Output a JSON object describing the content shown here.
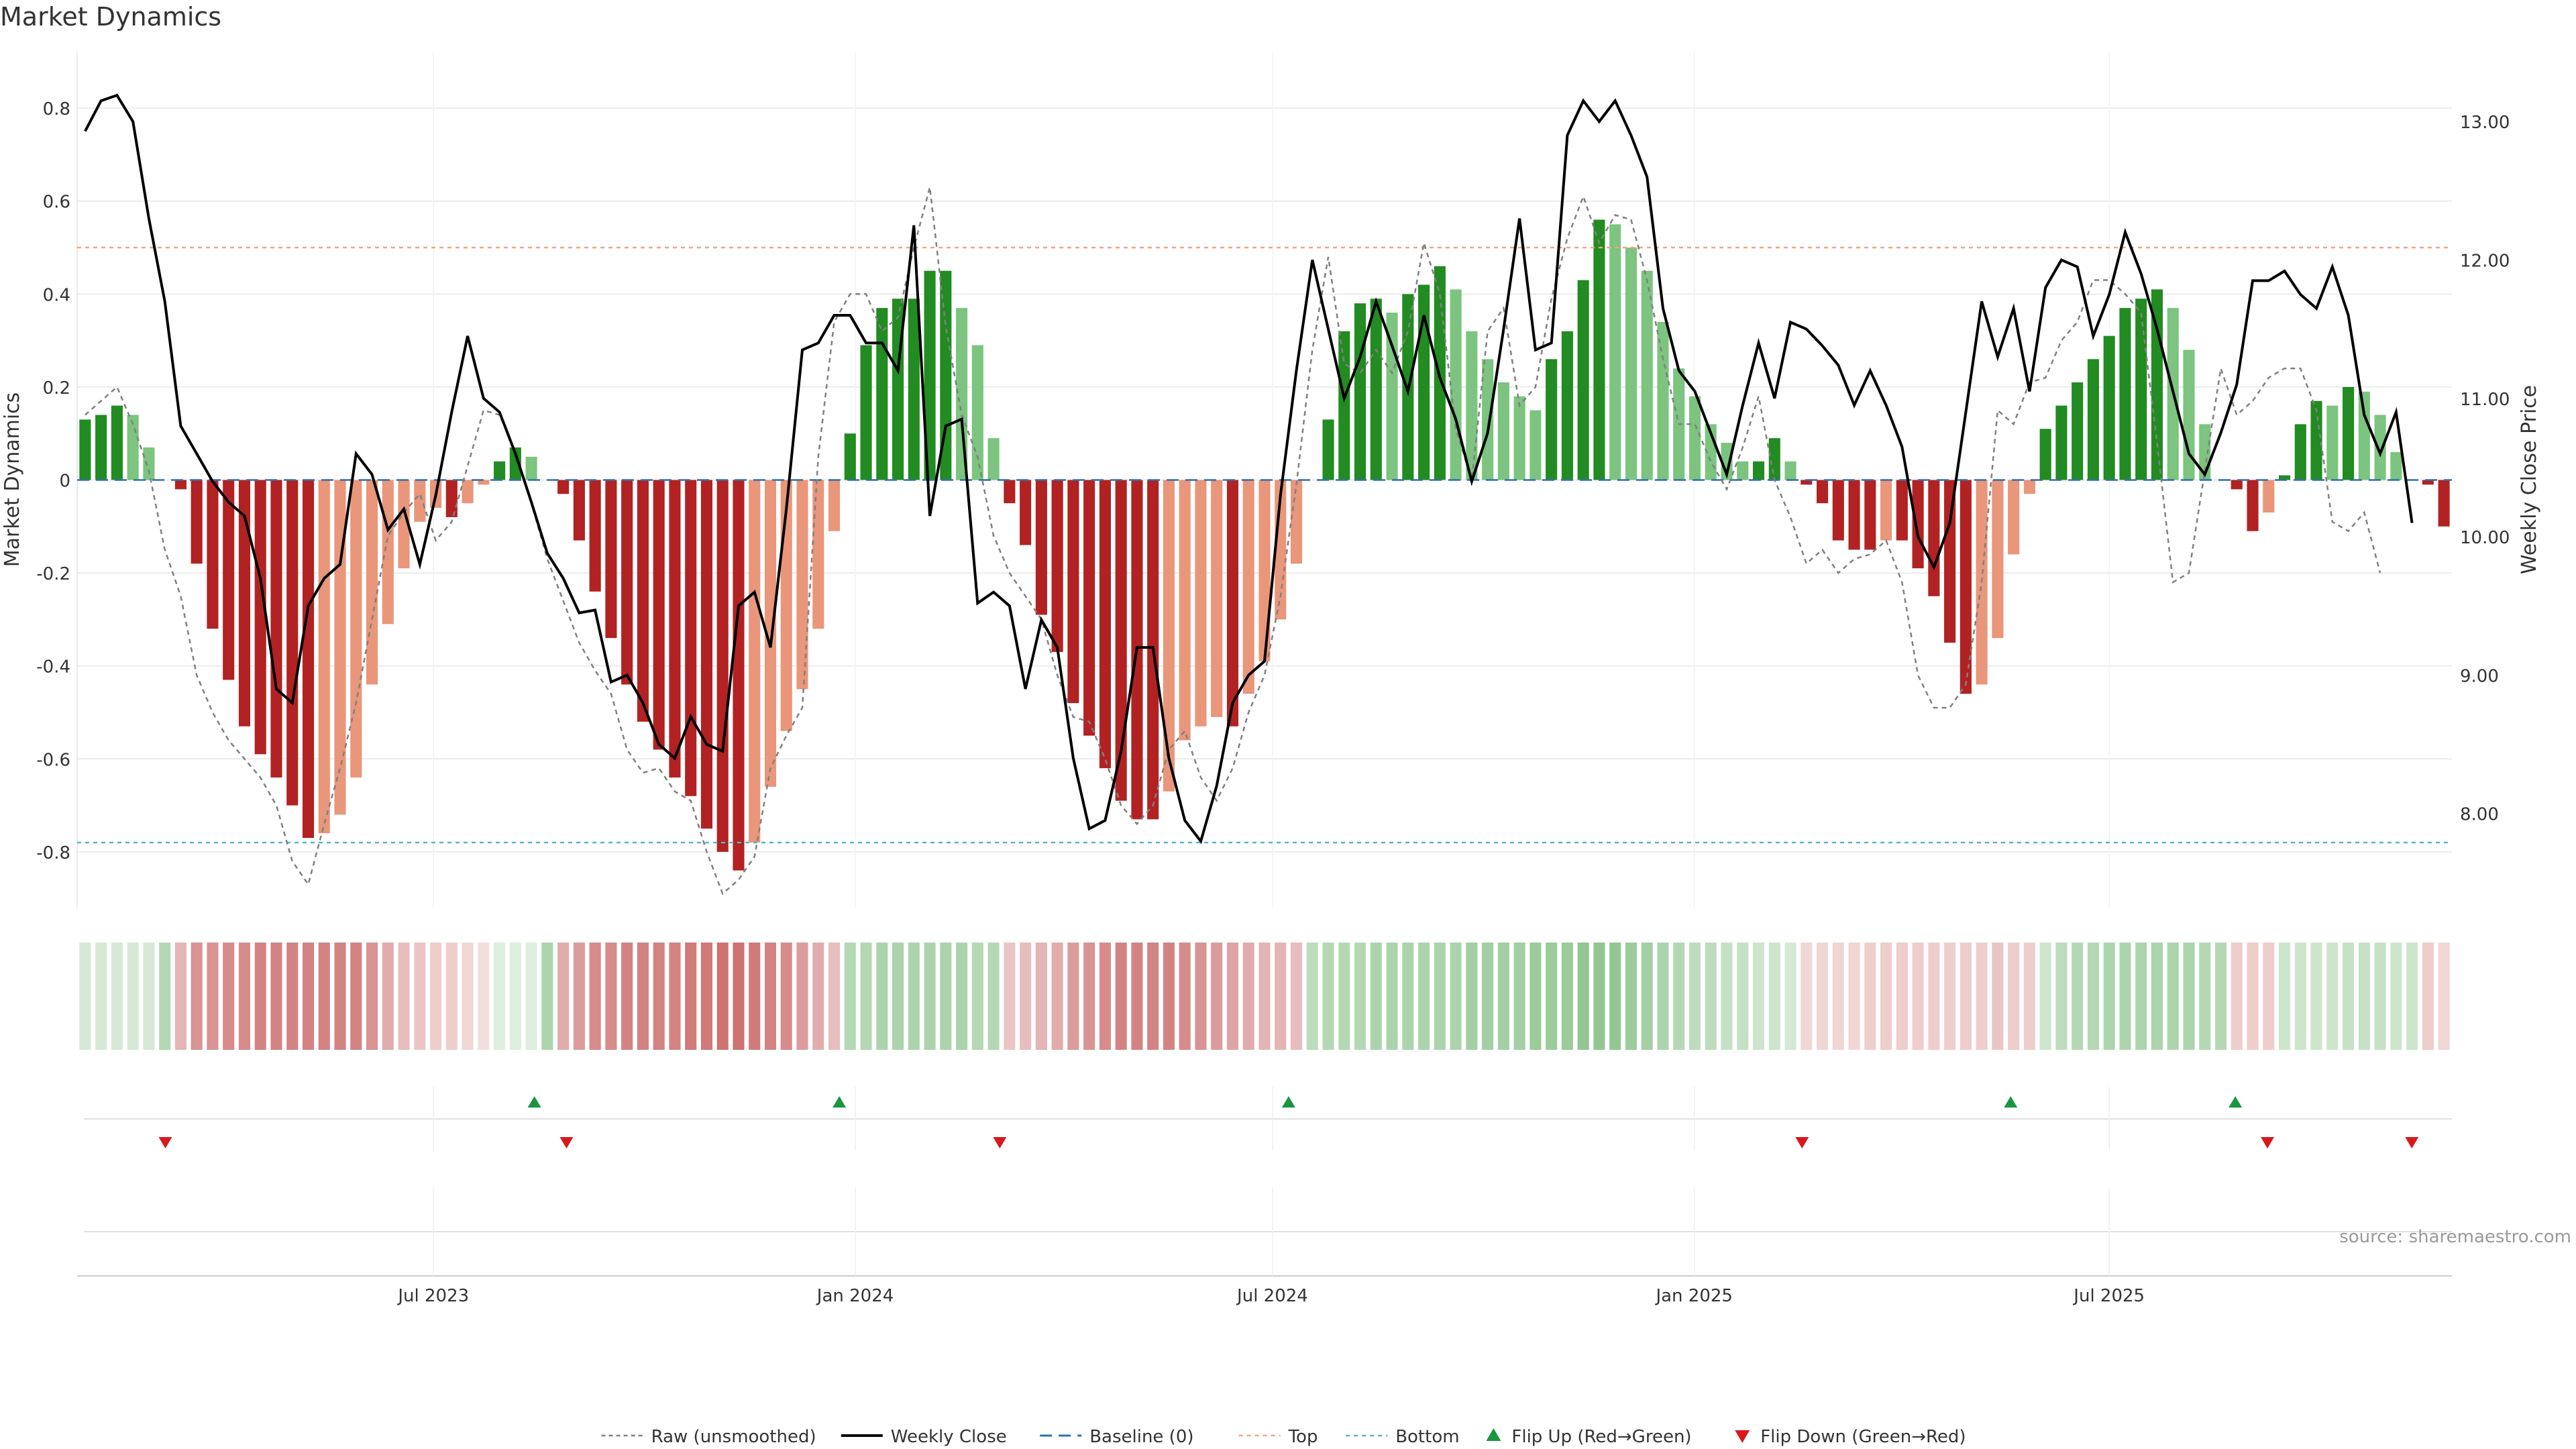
{
  "chart_data": {
    "type": "bar",
    "title": "Market Dynamics",
    "ylabel_left": "Market Dynamics",
    "ylabel_right": "Weekly Close Price",
    "source": "source: sharemaestro.com",
    "x_start": "2023-01-30",
    "x_end": "2025-11-24",
    "x_ticks": [
      {
        "label": "Jul 2023",
        "date": "2023-07-01"
      },
      {
        "label": "Jan 2024",
        "date": "2024-01-01"
      },
      {
        "label": "Jul 2024",
        "date": "2024-07-01"
      },
      {
        "label": "Jan 2025",
        "date": "2025-01-01"
      },
      {
        "label": "Jul 2025",
        "date": "2025-07-01"
      }
    ],
    "ylim_left": [
      -0.92,
      0.92
    ],
    "yticks_left": [
      {
        "v": 0.8,
        "label": "0.8"
      },
      {
        "v": 0.6,
        "label": "0.6"
      },
      {
        "v": 0.4,
        "label": "0.4"
      },
      {
        "v": 0.2,
        "label": "0.2"
      },
      {
        "v": 0,
        "label": "0"
      },
      {
        "v": -0.2,
        "label": "-0.2"
      },
      {
        "v": -0.4,
        "label": "-0.4"
      },
      {
        "v": -0.6,
        "label": "-0.6"
      },
      {
        "v": -0.8,
        "label": "-0.8"
      }
    ],
    "ylim_right": [
      7.32,
      13.5
    ],
    "yticks_right": [
      {
        "v": 13.0,
        "label": "13.00"
      },
      {
        "v": 12.0,
        "label": "12.00"
      },
      {
        "v": 11.0,
        "label": "11.00"
      },
      {
        "v": 10.0,
        "label": "10.00"
      },
      {
        "v": 9.0,
        "label": "9.00"
      },
      {
        "v": 8.0,
        "label": "8.00"
      }
    ],
    "top_level": 0.5,
    "bottom_level": -0.78,
    "baseline": 0,
    "market_dynamics": [
      0.13,
      0.14,
      0.16,
      0.14,
      0.07,
      0.0,
      -0.02,
      -0.18,
      -0.32,
      -0.43,
      -0.53,
      -0.59,
      -0.64,
      -0.7,
      -0.77,
      -0.76,
      -0.72,
      -0.64,
      -0.44,
      -0.31,
      -0.19,
      -0.09,
      -0.06,
      -0.08,
      -0.05,
      -0.01,
      0.04,
      0.07,
      0.05,
      0.0,
      -0.03,
      -0.13,
      -0.24,
      -0.34,
      -0.44,
      -0.52,
      -0.58,
      -0.64,
      -0.68,
      -0.75,
      -0.8,
      -0.84,
      -0.78,
      -0.66,
      -0.54,
      -0.45,
      -0.32,
      -0.11,
      0.1,
      0.29,
      0.37,
      0.39,
      0.39,
      0.45,
      0.45,
      0.37,
      0.29,
      0.09,
      -0.05,
      -0.14,
      -0.29,
      -0.37,
      -0.48,
      -0.55,
      -0.62,
      -0.69,
      -0.73,
      -0.73,
      -0.67,
      -0.56,
      -0.53,
      -0.51,
      -0.53,
      -0.46,
      -0.39,
      -0.3,
      -0.18,
      0.0,
      0.13,
      0.32,
      0.38,
      0.39,
      0.36,
      0.4,
      0.42,
      0.46,
      0.41,
      0.32,
      0.26,
      0.21,
      0.18,
      0.15,
      0.26,
      0.32,
      0.43,
      0.56,
      0.55,
      0.5,
      0.45,
      0.34,
      0.24,
      0.18,
      0.12,
      0.08,
      0.04,
      0.04,
      0.09,
      0.04,
      -0.01,
      -0.05,
      -0.13,
      -0.15,
      -0.15,
      -0.13,
      -0.13,
      -0.19,
      -0.25,
      -0.35,
      -0.46,
      -0.44,
      -0.34,
      -0.16,
      -0.03,
      0.11,
      0.16,
      0.21,
      0.26,
      0.31,
      0.37,
      0.39,
      0.41,
      0.37,
      0.28,
      0.12,
      0.0,
      -0.02,
      -0.11,
      -0.07,
      0.01,
      0.12,
      0.17,
      0.16,
      0.2,
      0.19,
      0.14,
      0.06,
      0.0,
      -0.01,
      -0.1
    ],
    "weekly_close": [
      12.93,
      13.15,
      13.19,
      13.0,
      12.3,
      11.7,
      10.8,
      10.6,
      10.4,
      10.25,
      10.15,
      9.7,
      8.9,
      8.8,
      9.5,
      9.7,
      9.8,
      10.6,
      10.45,
      10.05,
      10.2,
      9.8,
      10.3,
      10.9,
      11.45,
      11.0,
      10.9,
      10.6,
      10.25,
      9.88,
      9.7,
      9.45,
      9.47,
      8.95,
      9.0,
      8.8,
      8.5,
      8.4,
      8.7,
      8.5,
      8.45,
      9.5,
      9.6,
      9.2,
      10.2,
      11.35,
      11.4,
      11.6,
      11.6,
      11.4,
      11.4,
      11.2,
      12.25,
      10.15,
      10.8,
      10.85,
      9.52,
      9.6,
      9.5,
      8.9,
      9.4,
      9.2,
      8.4,
      7.89,
      7.95,
      8.45,
      9.2,
      9.2,
      8.4,
      7.95,
      7.8,
      8.2,
      8.8,
      9.0,
      9.1,
      10.3,
      11.2,
      12.0,
      11.5,
      11.0,
      11.3,
      11.7,
      11.38,
      11.05,
      11.6,
      11.15,
      10.85,
      10.4,
      10.75,
      11.5,
      12.3,
      11.35,
      11.4,
      12.9,
      13.15,
      13.0,
      13.15,
      12.9,
      12.6,
      11.65,
      11.2,
      11.05,
      10.75,
      10.45,
      10.95,
      11.4,
      11.0,
      11.55,
      11.5,
      11.38,
      11.24,
      10.95,
      11.2,
      10.95,
      10.65,
      10.0,
      9.78,
      10.1,
      10.9,
      11.7,
      11.3,
      11.65,
      11.05,
      11.8,
      12.0,
      11.95,
      11.45,
      11.75,
      12.2,
      11.9,
      11.5,
      11.05,
      10.6,
      10.45,
      10.75,
      11.1,
      11.85,
      11.85,
      11.92,
      11.75,
      11.65,
      11.95,
      11.6,
      10.88,
      10.6,
      10.9,
      10.1
    ],
    "raw_unsmoothed": [
      0.14,
      0.17,
      0.2,
      0.12,
      0.02,
      -0.15,
      -0.25,
      -0.42,
      -0.5,
      -0.56,
      -0.6,
      -0.64,
      -0.7,
      -0.82,
      -0.87,
      -0.74,
      -0.62,
      -0.48,
      -0.3,
      -0.12,
      -0.07,
      -0.03,
      -0.13,
      -0.09,
      0.03,
      0.15,
      0.14,
      0.06,
      -0.05,
      -0.17,
      -0.26,
      -0.35,
      -0.41,
      -0.46,
      -0.58,
      -0.63,
      -0.62,
      -0.67,
      -0.69,
      -0.8,
      -0.89,
      -0.86,
      -0.81,
      -0.62,
      -0.55,
      -0.49,
      0.05,
      0.34,
      0.4,
      0.4,
      0.32,
      0.35,
      0.5,
      0.63,
      0.33,
      0.14,
      0.05,
      -0.12,
      -0.2,
      -0.25,
      -0.3,
      -0.42,
      -0.51,
      -0.52,
      -0.6,
      -0.7,
      -0.74,
      -0.7,
      -0.58,
      -0.54,
      -0.64,
      -0.69,
      -0.62,
      -0.5,
      -0.42,
      -0.25,
      -0.01,
      0.28,
      0.48,
      0.25,
      0.23,
      0.28,
      0.23,
      0.32,
      0.51,
      0.4,
      0.11,
      0.0,
      0.32,
      0.37,
      0.16,
      0.2,
      0.39,
      0.52,
      0.61,
      0.51,
      0.57,
      0.56,
      0.43,
      0.26,
      0.12,
      0.12,
      0.04,
      -0.02,
      0.07,
      0.18,
      0.0,
      -0.08,
      -0.18,
      -0.15,
      -0.2,
      -0.17,
      -0.16,
      -0.13,
      -0.22,
      -0.42,
      -0.49,
      -0.49,
      -0.44,
      -0.22,
      0.15,
      0.12,
      0.21,
      0.22,
      0.3,
      0.34,
      0.43,
      0.43,
      0.4,
      0.36,
      0.08,
      -0.22,
      -0.2,
      0.02,
      0.24,
      0.14,
      0.17,
      0.22,
      0.24,
      0.24,
      0.15,
      -0.09,
      -0.11,
      -0.07,
      -0.2
    ],
    "heat_levels": [
      0.25,
      0.25,
      0.25,
      0.25,
      0.25,
      0.45,
      0.45,
      0.65,
      0.65,
      0.7,
      0.7,
      0.75,
      0.75,
      0.75,
      0.75,
      0.75,
      0.75,
      0.75,
      0.65,
      0.5,
      0.4,
      0.35,
      0.3,
      0.3,
      0.25,
      0.2,
      0.2,
      0.2,
      0.2,
      0.5,
      0.5,
      0.6,
      0.7,
      0.7,
      0.75,
      0.75,
      0.75,
      0.75,
      0.8,
      0.8,
      0.85,
      0.85,
      0.8,
      0.75,
      0.7,
      0.6,
      0.5,
      0.4,
      0.45,
      0.45,
      0.5,
      0.5,
      0.5,
      0.5,
      0.5,
      0.5,
      0.45,
      0.45,
      0.35,
      0.4,
      0.45,
      0.5,
      0.6,
      0.65,
      0.7,
      0.75,
      0.75,
      0.75,
      0.75,
      0.7,
      0.65,
      0.6,
      0.55,
      0.5,
      0.45,
      0.45,
      0.4,
      0.4,
      0.45,
      0.45,
      0.45,
      0.5,
      0.5,
      0.5,
      0.5,
      0.5,
      0.5,
      0.55,
      0.55,
      0.55,
      0.55,
      0.6,
      0.6,
      0.6,
      0.65,
      0.65,
      0.65,
      0.6,
      0.55,
      0.5,
      0.45,
      0.4,
      0.4,
      0.35,
      0.35,
      0.3,
      0.3,
      0.25,
      0.25,
      0.25,
      0.25,
      0.25,
      0.3,
      0.3,
      0.3,
      0.3,
      0.3,
      0.3,
      0.3,
      0.3,
      0.35,
      0.3,
      0.3,
      0.3,
      0.4,
      0.45,
      0.45,
      0.5,
      0.5,
      0.5,
      0.5,
      0.5,
      0.5,
      0.45,
      0.45,
      0.3,
      0.3,
      0.3,
      0.3,
      0.3,
      0.3,
      0.3,
      0.35,
      0.35,
      0.35,
      0.3,
      0.3,
      0.3,
      0.25
    ],
    "flip_up_dates": [
      "2023-08-14",
      "2023-12-25",
      "2024-07-08",
      "2025-05-19",
      "2025-08-25"
    ],
    "flip_down_dates": [
      "2023-03-06",
      "2023-08-28",
      "2024-03-04",
      "2025-02-17",
      "2025-09-08",
      "2025-11-10"
    ],
    "legend": [
      "Raw (unsmoothed)",
      "Weekly Close",
      "Baseline (0)",
      "Top",
      "Bottom",
      "Flip Up (Red→Green)",
      "Flip Down (Green→Red)"
    ],
    "legend_placement": "bottom-center",
    "colors": {
      "green_strong": "#228b22",
      "green_light": "#7cc47f",
      "red_strong": "#b22222",
      "red_light": "#e9967a",
      "top_line": "#f4a582",
      "bottom_line": "#5ab4c7",
      "baseline": "#2f6fad",
      "close": "#000000",
      "raw": "#808080",
      "flip_up": "#1a9641",
      "flip_down": "#d7191c",
      "grid": "#e6e6e6",
      "text": "#333333"
    }
  }
}
